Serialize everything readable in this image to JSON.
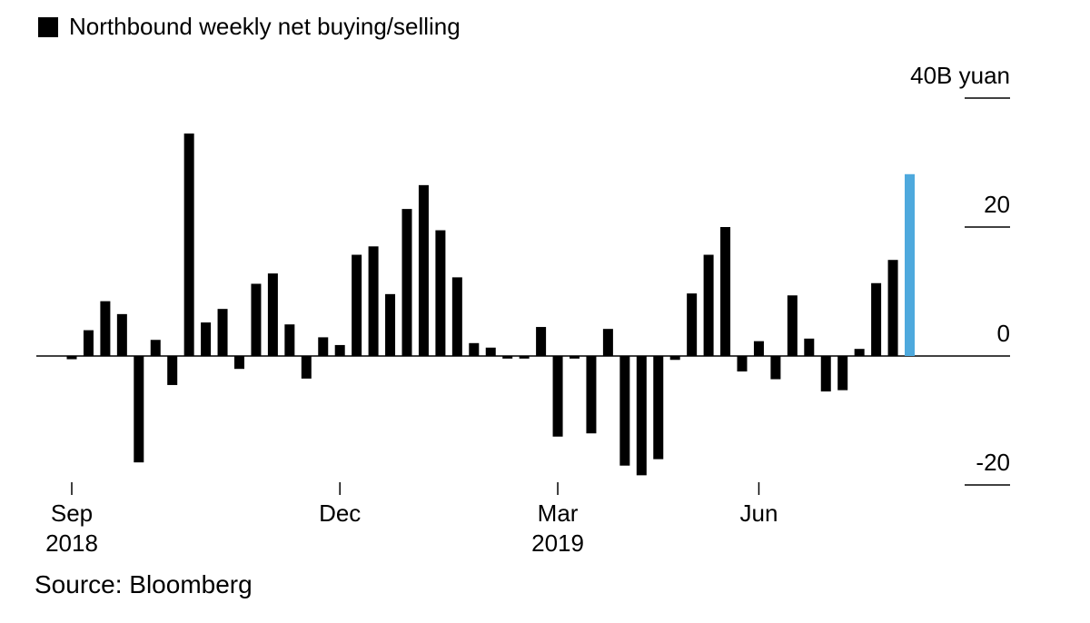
{
  "chart_data": {
    "type": "bar",
    "legend": "Northbound weekly net buying/selling",
    "unit_label": "40B yuan",
    "y_ticks": [
      "40B yuan",
      "20",
      "0",
      "-20"
    ],
    "ylim": [
      -20,
      40
    ],
    "x_ticks": [
      {
        "index": 0,
        "line1": "Sep",
        "line2": "2018"
      },
      {
        "index": 16,
        "line1": "Dec",
        "line2": ""
      },
      {
        "index": 29,
        "line1": "Mar",
        "line2": "2019"
      },
      {
        "index": 41,
        "line1": "Jun",
        "line2": ""
      }
    ],
    "values": [
      -0.5,
      4.0,
      8.5,
      6.5,
      -16.5,
      2.5,
      -4.5,
      34.5,
      5.2,
      7.3,
      -2.0,
      11.2,
      12.8,
      4.9,
      -3.5,
      2.9,
      1.7,
      15.7,
      17.0,
      9.6,
      22.8,
      26.5,
      19.5,
      12.2,
      2.0,
      1.3,
      -0.4,
      -0.4,
      4.5,
      -12.5,
      -0.4,
      -12.0,
      4.2,
      -17.0,
      -18.5,
      -16.0,
      -0.6,
      9.7,
      15.7,
      20.0,
      -2.4,
      2.3,
      -3.6,
      9.4,
      2.7,
      -5.5,
      -5.3,
      1.1,
      11.3,
      14.9,
      28.2
    ],
    "highlight_index": 50,
    "bar_color": "#000000",
    "highlight_color": "#4ea9dd",
    "source": "Source: Bloomberg"
  }
}
